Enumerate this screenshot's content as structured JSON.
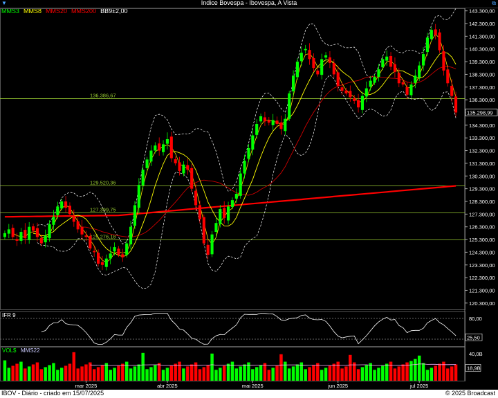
{
  "window": {
    "title": "Índice Bovespa - Ibovespa, A Vista"
  },
  "legend": [
    {
      "label": "MMS3",
      "color": "#00ff00"
    },
    {
      "label": "MMS8",
      "color": "#ffff00"
    },
    {
      "label": "MMS20",
      "color": "#ff0000"
    },
    {
      "label": "MMS200",
      "color": "#ff0000"
    },
    {
      "label": "BB9±2,00",
      "color": "#ffffff"
    }
  ],
  "colors": {
    "up": "#00ff00",
    "down": "#ff0000",
    "mm200": "#ff0000",
    "hline": "#9acd32",
    "band": "#ffffff"
  },
  "chart_data": {
    "type": "candlestick",
    "yticks": [
      "143.300,00",
      "142.300,00",
      "141.300,00",
      "140.300,00",
      "139.300,00",
      "138.300,00",
      "137.300,00",
      "136.300,00",
      "135.300,00",
      "134.300,00",
      "133.300,00",
      "132.300,00",
      "131.300,00",
      "130.300,00",
      "129.300,00",
      "128.300,00",
      "127.300,00",
      "126.300,00",
      "125.300,00",
      "124.300,00",
      "123.300,00",
      "122.300,00",
      "121.300,00",
      "120.300,00"
    ],
    "ylim": [
      119800,
      143500
    ],
    "last_price_label": "135.298,99",
    "hlines": [
      {
        "value": 136386.67,
        "label": "136.386,67"
      },
      {
        "value": 129520.36,
        "label": "129.520,36"
      },
      {
        "value": 127399.75,
        "label": "127.399,75"
      },
      {
        "value": 125276.18,
        "label": "125.276,18"
      }
    ],
    "xlabels": [
      {
        "label": "mar 2025",
        "index": 20
      },
      {
        "label": "abr 2025",
        "index": 40
      },
      {
        "label": "mai 2025",
        "index": 61
      },
      {
        "label": "jun 2025",
        "index": 82
      },
      {
        "label": "jul 2025",
        "index": 102
      }
    ],
    "closes": [
      125800,
      126100,
      125500,
      125200,
      125900,
      125400,
      126300,
      126000,
      125500,
      125000,
      125600,
      126500,
      127100,
      127900,
      128300,
      127800,
      127300,
      126700,
      126100,
      125700,
      125500,
      124600,
      124300,
      123400,
      123300,
      123800,
      124200,
      124700,
      124100,
      123900,
      125000,
      126300,
      128000,
      129600,
      130800,
      131600,
      132300,
      132700,
      132300,
      132800,
      133200,
      131700,
      131300,
      130700,
      131200,
      130800,
      129300,
      128000,
      126900,
      125000,
      124100,
      125700,
      126600,
      127700,
      127000,
      127900,
      128400,
      128900,
      130500,
      131500,
      132500,
      133500,
      134400,
      135000,
      134600,
      134500,
      134700,
      134400,
      134000,
      134800,
      136800,
      138200,
      139300,
      140000,
      140300,
      139500,
      138800,
      138300,
      139500,
      139800,
      139200,
      138300,
      137400,
      137000,
      136800,
      136500,
      136200,
      135700,
      136600,
      137200,
      137800,
      138100,
      138700,
      139500,
      139700,
      138900,
      138500,
      137600,
      137500,
      136700,
      137500,
      138200,
      139000,
      139900,
      141200,
      141800,
      141400,
      140200,
      138600,
      137600,
      136600,
      135300
    ],
    "rsi": {
      "label": "IFR 9",
      "yticks": [
        "80,00"
      ],
      "last": "25,50"
    },
    "volume": {
      "label": "VOL$",
      "ma_label": "MMS22",
      "yticks": [
        "40,0B"
      ],
      "last": "18,9B"
    }
  },
  "footer": {
    "left": "IBOV - Diário - criado em 15/07/2025",
    "right": "© 2025 Broadcast"
  }
}
